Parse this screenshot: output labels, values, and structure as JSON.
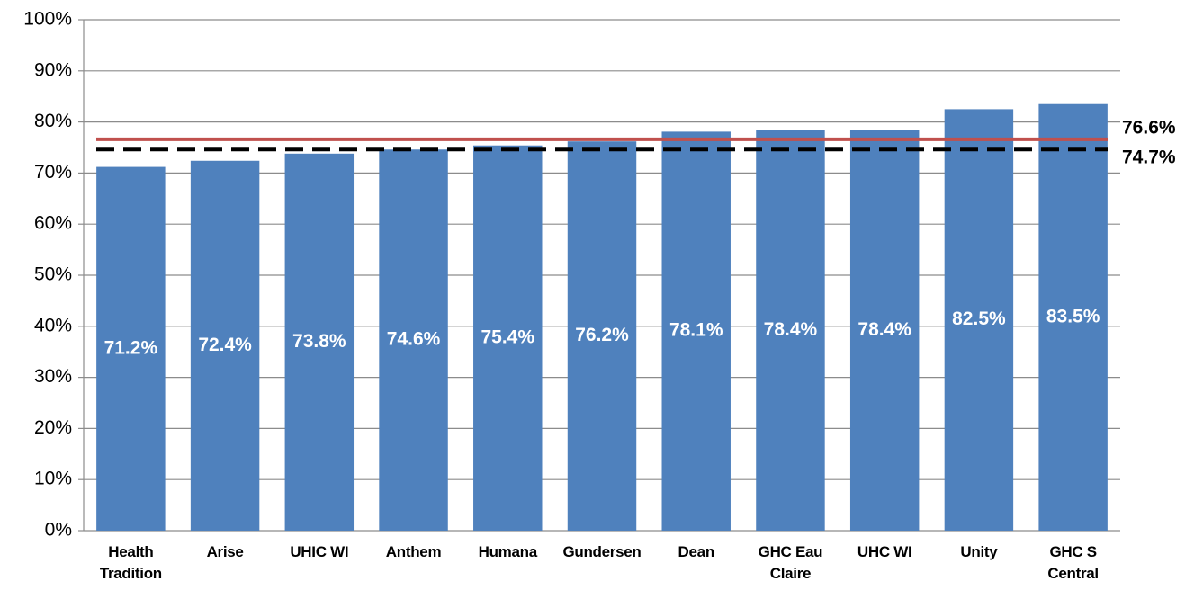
{
  "chart_data": {
    "type": "bar",
    "categories": [
      "Health Tradition",
      "Arise",
      "UHIC WI",
      "Anthem",
      "Humana",
      "Gundersen",
      "Dean",
      "GHC Eau Claire",
      "UHC WI",
      "Unity",
      "GHC S Central"
    ],
    "values": [
      71.2,
      72.4,
      73.8,
      74.6,
      75.4,
      76.2,
      78.1,
      78.4,
      78.4,
      82.5,
      83.5
    ],
    "value_labels": [
      "71.2%",
      "72.4%",
      "73.8%",
      "74.6%",
      "75.4%",
      "76.2%",
      "78.1%",
      "78.4%",
      "78.4%",
      "82.5%",
      "83.5%"
    ],
    "color": "#4f81bd",
    "ylim": [
      0,
      100
    ],
    "yticks": [
      {
        "value": 0,
        "label": "0%"
      },
      {
        "value": 10,
        "label": "10%"
      },
      {
        "value": 20,
        "label": "20%"
      },
      {
        "value": 30,
        "label": "30%"
      },
      {
        "value": 40,
        "label": "40%"
      },
      {
        "value": 50,
        "label": "50%"
      },
      {
        "value": 60,
        "label": "60%"
      },
      {
        "value": 70,
        "label": "70%"
      },
      {
        "value": 80,
        "label": "80%"
      },
      {
        "value": 90,
        "label": "90%"
      },
      {
        "value": 100,
        "label": "100%"
      }
    ],
    "grid": true,
    "reference_lines": [
      {
        "value": 76.6,
        "label": "76.6%",
        "color": "#c0504d",
        "style": "solid"
      },
      {
        "value": 74.7,
        "label": "74.7%",
        "color": "#000000",
        "style": "dashed"
      }
    ]
  }
}
